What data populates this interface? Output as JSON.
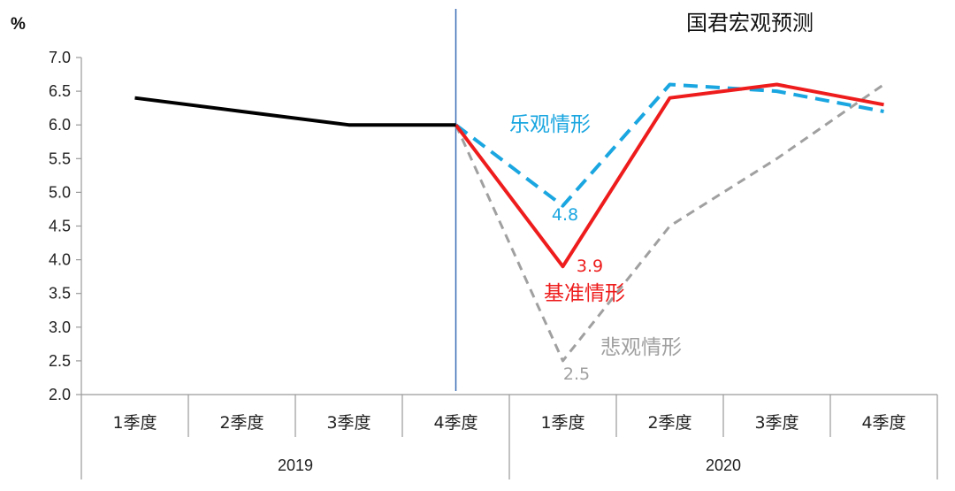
{
  "chart_data": {
    "type": "line",
    "title": "国君宏观预测",
    "ylabel": "%",
    "ylim": [
      2.0,
      7.0
    ],
    "yticks": [
      "2.0",
      "2.5",
      "3.0",
      "3.5",
      "4.0",
      "4.5",
      "5.0",
      "5.5",
      "6.0",
      "6.5",
      "7.0"
    ],
    "categories": [
      "1季度",
      "2季度",
      "3季度",
      "4季度",
      "1季度",
      "2季度",
      "3季度",
      "4季度"
    ],
    "groups": [
      {
        "label": "2019",
        "start": 0,
        "end": 3
      },
      {
        "label": "2020",
        "start": 4,
        "end": 7
      }
    ],
    "grid": false,
    "series": [
      {
        "values": [
          6.4,
          6.2,
          6.0,
          6.0,
          null,
          null,
          null,
          null
        ],
        "color": "#000000",
        "style": "solid"
      },
      {
        "name": "乐观情形",
        "values": [
          null,
          null,
          null,
          6.0,
          4.8,
          6.6,
          6.5,
          6.2
        ],
        "color": "#1aa6e0",
        "style": "dashed"
      },
      {
        "name": "基准情形",
        "values": [
          null,
          null,
          null,
          6.0,
          3.9,
          6.4,
          6.6,
          6.3
        ],
        "color": "#ee1c1c",
        "style": "solid"
      },
      {
        "name": "悲观情形",
        "values": [
          null,
          null,
          null,
          6.0,
          2.5,
          4.5,
          5.5,
          6.6
        ],
        "color": "#a0a0a0",
        "style": "dashed"
      }
    ],
    "annotations": [
      {
        "text": "乐观情形",
        "color": "#1aa6e0"
      },
      {
        "text": "4.8",
        "color": "#1aa6e0"
      },
      {
        "text": "3.9",
        "color": "#ee1c1c"
      },
      {
        "text": "基准情形",
        "color": "#ee1c1c"
      },
      {
        "text": "悲观情形",
        "color": "#a0a0a0"
      },
      {
        "text": "2.5",
        "color": "#a0a0a0"
      }
    ],
    "divider_color": "#3a6db5"
  }
}
